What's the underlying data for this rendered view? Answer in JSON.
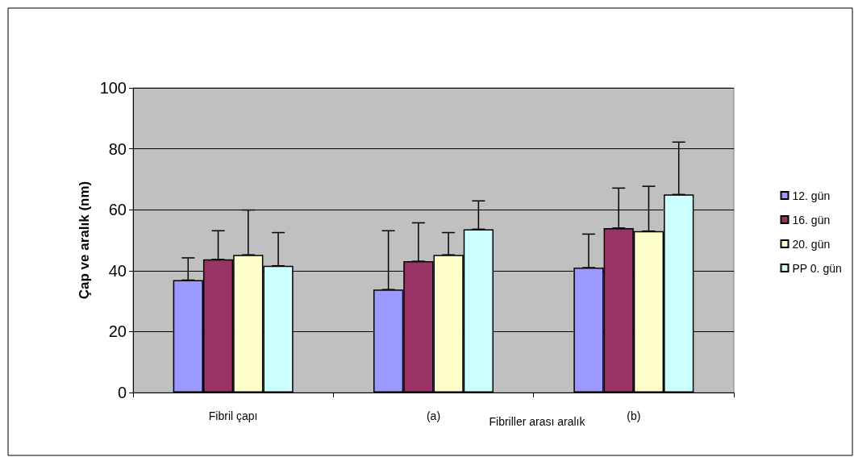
{
  "chart_data": {
    "type": "bar",
    "ylabel": "Çap ve aralık (nm)",
    "categories": [
      "Fibril çapı",
      "(a)",
      "(b)"
    ],
    "annotations": [
      "Fibriller arası aralık"
    ],
    "series": [
      {
        "name": "12. gün",
        "color": "#9999ff",
        "values": [
          36.9,
          33.8,
          41.0
        ],
        "errors": [
          [
            36.9,
            44.2
          ],
          [
            33.8,
            53.1
          ],
          [
            41.0,
            52.0
          ]
        ]
      },
      {
        "name": "16. gün",
        "color": "#993366",
        "values": [
          43.7,
          43.1,
          54.0
        ],
        "errors": [
          [
            43.7,
            53.1
          ],
          [
            43.1,
            55.7
          ],
          [
            54.0,
            67.1
          ]
        ]
      },
      {
        "name": "20. gün",
        "color": "#ffffcc",
        "values": [
          45.2,
          45.2,
          53.0
        ],
        "errors": [
          [
            45.2,
            59.9
          ],
          [
            45.2,
            52.5
          ],
          [
            53.0,
            67.7
          ]
        ]
      },
      {
        "name": "PP 0. gün",
        "color": "#ccffff",
        "values": [
          41.6,
          53.6,
          65.0
        ],
        "errors": [
          [
            41.6,
            52.5
          ],
          [
            53.6,
            62.9
          ],
          [
            65.0,
            82.2
          ]
        ]
      }
    ],
    "ylim": [
      0,
      100
    ],
    "yticks": [
      0,
      20,
      40,
      60,
      80,
      100
    ],
    "grid": "y",
    "legend": "right"
  }
}
